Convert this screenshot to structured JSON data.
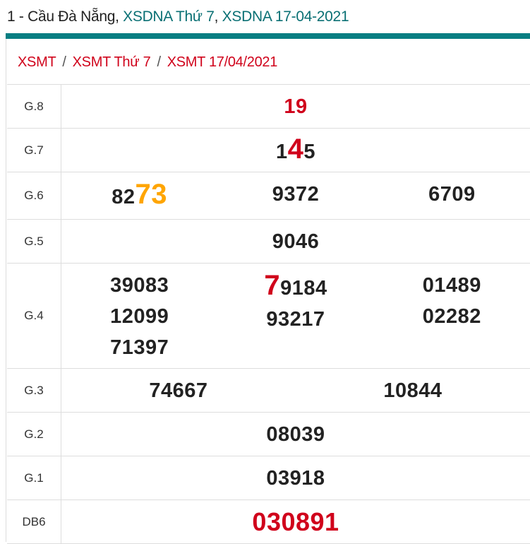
{
  "header": {
    "title_prefix": "1 - Cầu Đà Nẵng, ",
    "link1": "XSDNA Thứ 7",
    "comma": ", ",
    "link2": "XSDNA 17-04-2021",
    "accent_color": "#087e82"
  },
  "breadcrumb": [
    "XSMT",
    "XSMT Thứ 7",
    "XSMT 17/04/2021"
  ],
  "colors": {
    "red": "#d0021b",
    "orange": "#ffa500",
    "text": "#222222"
  },
  "prizes": [
    {
      "label": "G.8",
      "cols": [
        [
          {
            "pre": "",
            "hl": "19",
            "post": "",
            "hl_color": "red"
          }
        ]
      ]
    },
    {
      "label": "G.7",
      "cols": [
        [
          {
            "pre": "1",
            "hl": "4",
            "post": "5",
            "hl_color": "red"
          }
        ]
      ]
    },
    {
      "label": "G.6",
      "cols": [
        [
          {
            "pre": "82",
            "hl": "73",
            "post": "",
            "hl_color": "orange"
          }
        ],
        [
          {
            "pre": "9372"
          }
        ],
        [
          {
            "pre": "6709"
          }
        ]
      ]
    },
    {
      "label": "G.5",
      "cols": [
        [
          {
            "pre": "9046"
          }
        ]
      ]
    },
    {
      "label": "G.4",
      "cols": [
        [
          {
            "pre": "39083"
          },
          {
            "pre": "12099"
          },
          {
            "pre": "71397"
          }
        ],
        [
          {
            "pre": "",
            "hl": "7",
            "post": "9184",
            "hl_color": "red"
          },
          {
            "pre": "93217"
          }
        ],
        [
          {
            "pre": "01489"
          },
          {
            "pre": "02282"
          }
        ]
      ]
    },
    {
      "label": "G.3",
      "cols": [
        [
          {
            "pre": "74667"
          }
        ],
        [
          {
            "pre": "10844"
          }
        ]
      ]
    },
    {
      "label": "G.2",
      "cols": [
        [
          {
            "pre": "08039"
          }
        ]
      ]
    },
    {
      "label": "G.1",
      "cols": [
        [
          {
            "pre": "03918"
          }
        ]
      ]
    },
    {
      "label": "DB6",
      "cols": [
        [
          {
            "pre": "",
            "hl": "030891",
            "post": "",
            "hl_color": "red"
          }
        ]
      ]
    }
  ]
}
